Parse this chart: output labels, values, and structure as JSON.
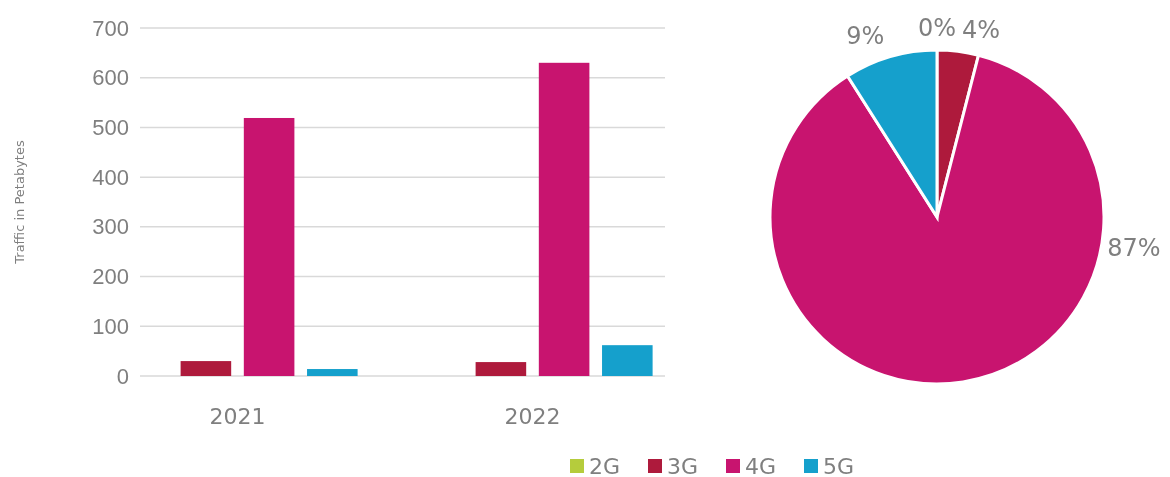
{
  "chart_data": [
    {
      "type": "bar",
      "ylabel": "Traffic in Petabytes",
      "categories": [
        "2021",
        "2022"
      ],
      "series": [
        {
          "name": "2G",
          "color": "#b5cc3c",
          "values": [
            0,
            0
          ]
        },
        {
          "name": "3G",
          "color": "#ae1a3c",
          "values": [
            30,
            28
          ]
        },
        {
          "name": "4G",
          "color": "#c8146f",
          "values": [
            519,
            630
          ]
        },
        {
          "name": "5G",
          "color": "#15a0cc",
          "values": [
            14,
            62
          ]
        }
      ],
      "ylim": [
        0,
        700
      ],
      "yticks": [
        0,
        100,
        200,
        300,
        400,
        500,
        600,
        700
      ],
      "grid": "y",
      "legend": "bottom"
    },
    {
      "type": "pie",
      "categories": [
        null,
        null,
        null,
        null
      ],
      "values": [
        0,
        4,
        87,
        9
      ],
      "colors": [
        "#b5cc3c",
        "#ae1a3c",
        "#c8146f",
        "#15a0cc"
      ],
      "value_labels": [
        "0%",
        "4%",
        "87%",
        "9%"
      ]
    }
  ]
}
